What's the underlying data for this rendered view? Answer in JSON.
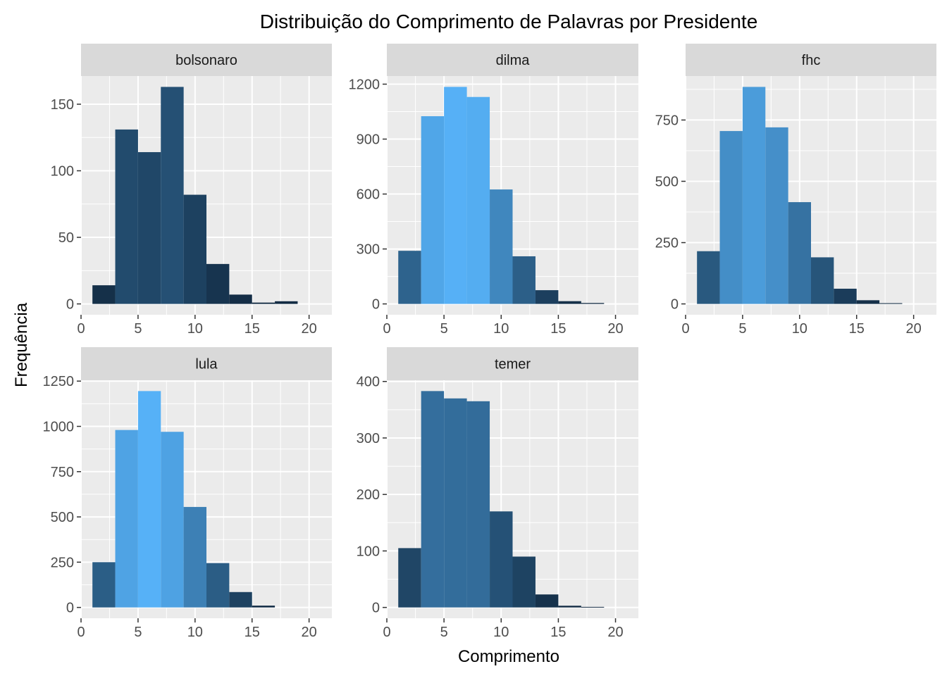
{
  "chart_data": {
    "type": "bar",
    "title": "Distribuição do Comprimento de Palavras por Presidente",
    "xlabel": "Comprimento",
    "ylabel": "Frequência",
    "grid": true,
    "colors": {
      "panel_bg": "#ebebeb",
      "strip_bg": "#d9d9d9",
      "grid_major": "#ffffff",
      "fill_low": "#132b43",
      "fill_high": "#56b1f7"
    },
    "bin_edges": [
      1,
      3,
      5,
      7,
      9,
      11,
      13,
      15,
      17,
      19,
      21
    ],
    "xlim": [
      0,
      22
    ],
    "x_ticks": [
      0,
      5,
      10,
      15,
      20
    ],
    "panels": [
      {
        "name": "bolsonaro",
        "values": [
          14,
          131,
          114,
          163,
          82,
          30,
          7,
          1,
          2,
          0
        ],
        "ylim": [
          -8.15,
          171.15
        ],
        "y_ticks": [
          0,
          50,
          100,
          150
        ]
      },
      {
        "name": "dilma",
        "values": [
          290,
          1025,
          1185,
          1130,
          625,
          260,
          75,
          15,
          5,
          0
        ],
        "ylim": [
          -59.25,
          1244.25
        ],
        "y_ticks": [
          0,
          300,
          600,
          900,
          1200
        ]
      },
      {
        "name": "fhc",
        "values": [
          215,
          705,
          885,
          720,
          415,
          190,
          62,
          15,
          3,
          0
        ],
        "ylim": [
          -44.25,
          929.25
        ],
        "y_ticks": [
          0,
          250,
          500,
          750
        ]
      },
      {
        "name": "lula",
        "values": [
          250,
          980,
          1195,
          970,
          555,
          245,
          85,
          10,
          0,
          0
        ],
        "ylim": [
          -59.75,
          1254.75
        ],
        "y_ticks": [
          0,
          250,
          500,
          750,
          1000,
          1250
        ]
      },
      {
        "name": "temer",
        "values": [
          105,
          383,
          370,
          365,
          170,
          90,
          23,
          3,
          1,
          0
        ],
        "ylim": [
          -19.15,
          402.15
        ],
        "y_ticks": [
          0,
          100,
          200,
          300,
          400
        ]
      }
    ]
  }
}
